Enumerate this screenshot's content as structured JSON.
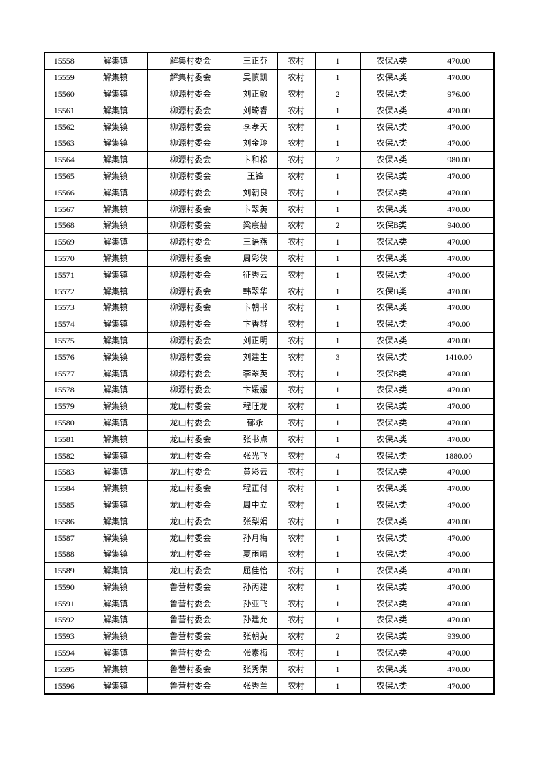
{
  "page": {
    "background_color": "#ffffff",
    "text_color": "#000000",
    "border_color": "#000000"
  },
  "table": {
    "rows": [
      [
        "15558",
        "解集镇",
        "解集村委会",
        "王正芬",
        "农村",
        "1",
        "农保A类",
        "470.00"
      ],
      [
        "15559",
        "解集镇",
        "解集村委会",
        "吴慎凯",
        "农村",
        "1",
        "农保A类",
        "470.00"
      ],
      [
        "15560",
        "解集镇",
        "柳源村委会",
        "刘正敏",
        "农村",
        "2",
        "农保A类",
        "976.00"
      ],
      [
        "15561",
        "解集镇",
        "柳源村委会",
        "刘琦睿",
        "农村",
        "1",
        "农保A类",
        "470.00"
      ],
      [
        "15562",
        "解集镇",
        "柳源村委会",
        "李孝天",
        "农村",
        "1",
        "农保A类",
        "470.00"
      ],
      [
        "15563",
        "解集镇",
        "柳源村委会",
        "刘金玲",
        "农村",
        "1",
        "农保A类",
        "470.00"
      ],
      [
        "15564",
        "解集镇",
        "柳源村委会",
        "卞和松",
        "农村",
        "2",
        "农保A类",
        "980.00"
      ],
      [
        "15565",
        "解集镇",
        "柳源村委会",
        "王锋",
        "农村",
        "1",
        "农保A类",
        "470.00"
      ],
      [
        "15566",
        "解集镇",
        "柳源村委会",
        "刘朝良",
        "农村",
        "1",
        "农保A类",
        "470.00"
      ],
      [
        "15567",
        "解集镇",
        "柳源村委会",
        "卞翠英",
        "农村",
        "1",
        "农保A类",
        "470.00"
      ],
      [
        "15568",
        "解集镇",
        "柳源村委会",
        "梁宸赫",
        "农村",
        "2",
        "农保B类",
        "940.00"
      ],
      [
        "15569",
        "解集镇",
        "柳源村委会",
        "王语燕",
        "农村",
        "1",
        "农保A类",
        "470.00"
      ],
      [
        "15570",
        "解集镇",
        "柳源村委会",
        "周彩侠",
        "农村",
        "1",
        "农保A类",
        "470.00"
      ],
      [
        "15571",
        "解集镇",
        "柳源村委会",
        "征秀云",
        "农村",
        "1",
        "农保A类",
        "470.00"
      ],
      [
        "15572",
        "解集镇",
        "柳源村委会",
        "韩翠华",
        "农村",
        "1",
        "农保B类",
        "470.00"
      ],
      [
        "15573",
        "解集镇",
        "柳源村委会",
        "卞朝书",
        "农村",
        "1",
        "农保A类",
        "470.00"
      ],
      [
        "15574",
        "解集镇",
        "柳源村委会",
        "卞香群",
        "农村",
        "1",
        "农保A类",
        "470.00"
      ],
      [
        "15575",
        "解集镇",
        "柳源村委会",
        "刘正明",
        "农村",
        "1",
        "农保A类",
        "470.00"
      ],
      [
        "15576",
        "解集镇",
        "柳源村委会",
        "刘建生",
        "农村",
        "3",
        "农保A类",
        "1410.00"
      ],
      [
        "15577",
        "解集镇",
        "柳源村委会",
        "李翠英",
        "农村",
        "1",
        "农保B类",
        "470.00"
      ],
      [
        "15578",
        "解集镇",
        "柳源村委会",
        "卞媛媛",
        "农村",
        "1",
        "农保A类",
        "470.00"
      ],
      [
        "15579",
        "解集镇",
        "龙山村委会",
        "程旺龙",
        "农村",
        "1",
        "农保A类",
        "470.00"
      ],
      [
        "15580",
        "解集镇",
        "龙山村委会",
        "郁永",
        "农村",
        "1",
        "农保A类",
        "470.00"
      ],
      [
        "15581",
        "解集镇",
        "龙山村委会",
        "张书点",
        "农村",
        "1",
        "农保A类",
        "470.00"
      ],
      [
        "15582",
        "解集镇",
        "龙山村委会",
        "张光飞",
        "农村",
        "4",
        "农保A类",
        "1880.00"
      ],
      [
        "15583",
        "解集镇",
        "龙山村委会",
        "黄彩云",
        "农村",
        "1",
        "农保A类",
        "470.00"
      ],
      [
        "15584",
        "解集镇",
        "龙山村委会",
        "程正付",
        "农村",
        "1",
        "农保A类",
        "470.00"
      ],
      [
        "15585",
        "解集镇",
        "龙山村委会",
        "周中立",
        "农村",
        "1",
        "农保A类",
        "470.00"
      ],
      [
        "15586",
        "解集镇",
        "龙山村委会",
        "张梨娟",
        "农村",
        "1",
        "农保A类",
        "470.00"
      ],
      [
        "15587",
        "解集镇",
        "龙山村委会",
        "孙月梅",
        "农村",
        "1",
        "农保A类",
        "470.00"
      ],
      [
        "15588",
        "解集镇",
        "龙山村委会",
        "夏雨晴",
        "农村",
        "1",
        "农保A类",
        "470.00"
      ],
      [
        "15589",
        "解集镇",
        "龙山村委会",
        "屈佳怡",
        "农村",
        "1",
        "农保A类",
        "470.00"
      ],
      [
        "15590",
        "解集镇",
        "鲁营村委会",
        "孙丙建",
        "农村",
        "1",
        "农保A类",
        "470.00"
      ],
      [
        "15591",
        "解集镇",
        "鲁营村委会",
        "孙亚飞",
        "农村",
        "1",
        "农保A类",
        "470.00"
      ],
      [
        "15592",
        "解集镇",
        "鲁营村委会",
        "孙建允",
        "农村",
        "1",
        "农保A类",
        "470.00"
      ],
      [
        "15593",
        "解集镇",
        "鲁营村委会",
        "张朝英",
        "农村",
        "2",
        "农保A类",
        "939.00"
      ],
      [
        "15594",
        "解集镇",
        "鲁营村委会",
        "张素梅",
        "农村",
        "1",
        "农保A类",
        "470.00"
      ],
      [
        "15595",
        "解集镇",
        "鲁营村委会",
        "张秀荣",
        "农村",
        "1",
        "农保A类",
        "470.00"
      ],
      [
        "15596",
        "解集镇",
        "鲁营村委会",
        "张秀兰",
        "农村",
        "1",
        "农保A类",
        "470.00"
      ]
    ]
  }
}
